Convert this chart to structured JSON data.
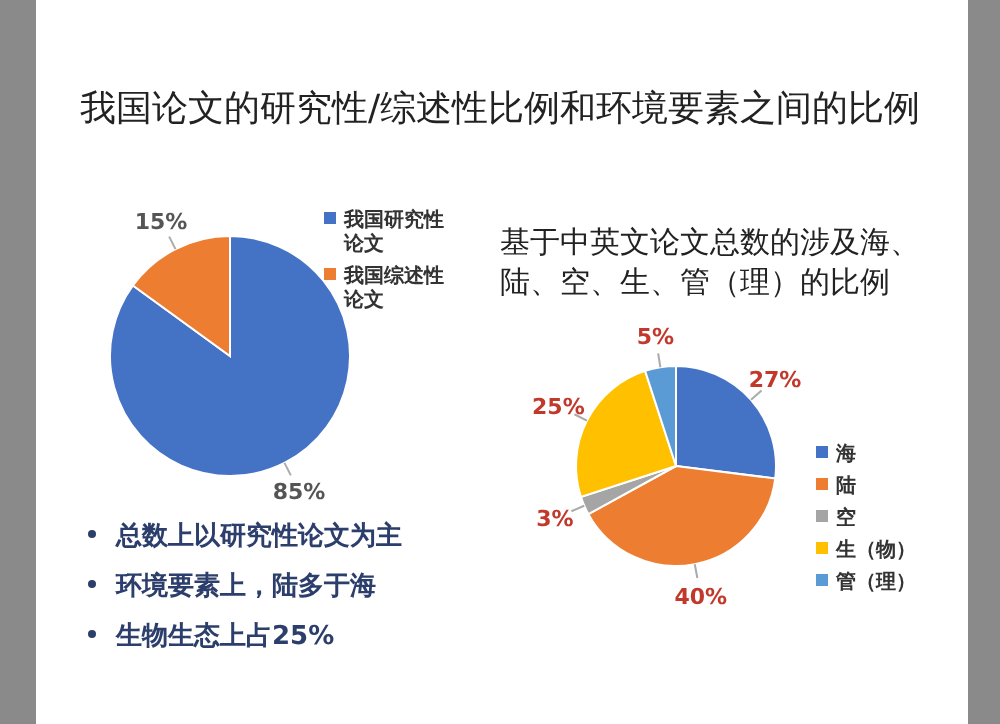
{
  "chart_data": [
    {
      "type": "pie",
      "title": "我国论文的研究性/综述性比例和环境要素之间的比例",
      "categories": [
        "我国研究性论文",
        "我国综述性论文"
      ],
      "values": [
        85,
        15
      ],
      "value_labels": [
        "85%",
        "15%"
      ],
      "colors": [
        "#4472c4",
        "#ed7d31"
      ],
      "legend": "right",
      "annotations": [
        "总数上以研究性论文为主",
        "环境要素上，陆多于海",
        "生物生态上占25%"
      ]
    },
    {
      "type": "pie",
      "title": "基于中英文论文总数的涉及海、陆、空、生、管（理）的比例",
      "categories": [
        "海",
        "陆",
        "空",
        "生（物）",
        "管（理）"
      ],
      "values": [
        27,
        40,
        3,
        25,
        5
      ],
      "value_labels": [
        "27%",
        "40%",
        "3%",
        "25%",
        "5%"
      ],
      "colors": [
        "#4472c4",
        "#ed7d31",
        "#a5a5a5",
        "#ffc000",
        "#5b9bd5"
      ],
      "legend": "right"
    }
  ]
}
